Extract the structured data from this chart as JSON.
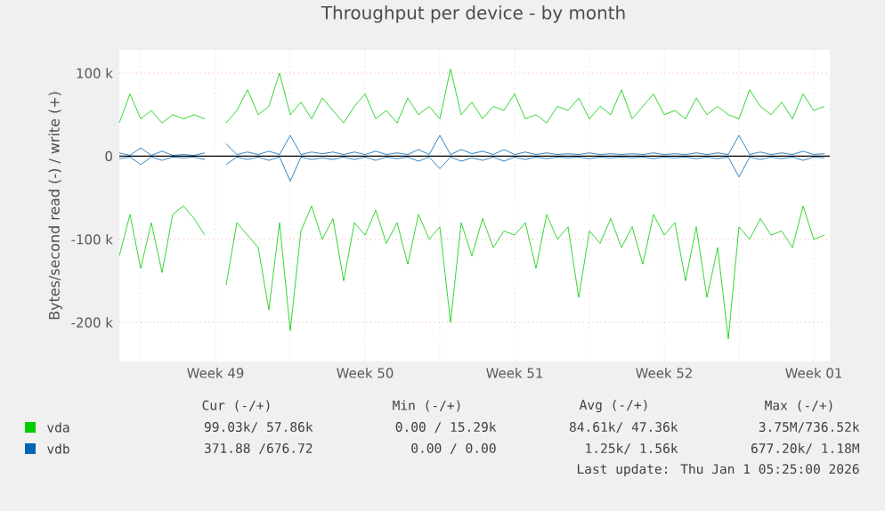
{
  "chart_data": {
    "type": "line",
    "title": "Throughput per device - by month",
    "ylabel": "Bytes/second read (-) / write (+)",
    "x": [
      "2025-11-30T00:00",
      "2025-11-30T12:00",
      "2025-12-01T00:00",
      "2025-12-01T12:00",
      "2025-12-02T00:00",
      "2025-12-02T12:00",
      "2025-12-03T00:00",
      "2025-12-03T12:00",
      "2025-12-04T00:00",
      "2025-12-04T12:00",
      "2025-12-05T00:00",
      "2025-12-05T12:00",
      "2025-12-06T00:00",
      "2025-12-06T12:00",
      "2025-12-07T00:00",
      "2025-12-07T12:00",
      "2025-12-08T00:00",
      "2025-12-08T12:00",
      "2025-12-09T00:00",
      "2025-12-09T12:00",
      "2025-12-10T00:00",
      "2025-12-10T12:00",
      "2025-12-11T00:00",
      "2025-12-11T12:00",
      "2025-12-12T00:00",
      "2025-12-12T12:00",
      "2025-12-13T00:00",
      "2025-12-13T12:00",
      "2025-12-14T00:00",
      "2025-12-14T12:00",
      "2025-12-15T00:00",
      "2025-12-15T12:00",
      "2025-12-16T00:00",
      "2025-12-16T12:00",
      "2025-12-17T00:00",
      "2025-12-17T12:00",
      "2025-12-18T00:00",
      "2025-12-18T12:00",
      "2025-12-19T00:00",
      "2025-12-19T12:00",
      "2025-12-20T00:00",
      "2025-12-20T12:00",
      "2025-12-21T00:00",
      "2025-12-21T12:00",
      "2025-12-22T00:00",
      "2025-12-22T12:00",
      "2025-12-23T00:00",
      "2025-12-23T12:00",
      "2025-12-24T00:00",
      "2025-12-24T12:00",
      "2025-12-25T00:00",
      "2025-12-25T12:00",
      "2025-12-26T00:00",
      "2025-12-26T12:00",
      "2025-12-27T00:00",
      "2025-12-27T12:00",
      "2025-12-28T00:00",
      "2025-12-28T12:00",
      "2025-12-29T00:00",
      "2025-12-29T12:00",
      "2025-12-30T00:00",
      "2025-12-30T12:00",
      "2025-12-31T00:00",
      "2025-12-31T12:00",
      "2026-01-01T00:00",
      "2026-01-01T12:00",
      "2026-01-02T00:00"
    ],
    "series": [
      {
        "name": "vda",
        "color": "#00cc00",
        "values": [
          40000,
          75000,
          45000,
          55000,
          40000,
          50000,
          45000,
          50000,
          45000,
          null,
          40000,
          55000,
          80000,
          50000,
          60000,
          100000,
          50000,
          65000,
          45000,
          70000,
          55000,
          40000,
          60000,
          75000,
          45000,
          55000,
          40000,
          70000,
          50000,
          60000,
          45000,
          105000,
          50000,
          65000,
          45000,
          60000,
          55000,
          75000,
          45000,
          50000,
          40000,
          60000,
          55000,
          70000,
          45000,
          60000,
          50000,
          80000,
          45000,
          60000,
          75000,
          50000,
          55000,
          45000,
          70000,
          50000,
          60000,
          50000,
          45000,
          80000,
          60000,
          50000,
          65000,
          45000,
          75000,
          55000,
          60000
        ]
      },
      {
        "color": "#00cc00",
        "values": [
          -120000,
          -70000,
          -135000,
          -80000,
          -140000,
          -70000,
          -60000,
          -75000,
          -95000,
          null,
          -155000,
          -80000,
          -95000,
          -110000,
          -185000,
          -80000,
          -210000,
          -90000,
          -60000,
          -100000,
          -75000,
          -150000,
          -80000,
          -95000,
          -65000,
          -105000,
          -80000,
          -130000,
          -70000,
          -100000,
          -85000,
          -200000,
          -80000,
          -120000,
          -75000,
          -110000,
          -90000,
          -95000,
          -80000,
          -135000,
          -70000,
          -100000,
          -85000,
          -170000,
          -90000,
          -105000,
          -75000,
          -110000,
          -85000,
          -130000,
          -70000,
          -95000,
          -80000,
          -150000,
          -85000,
          -170000,
          -110000,
          -220000,
          -85000,
          -100000,
          -75000,
          -95000,
          -90000,
          -110000,
          -60000,
          -100000,
          -95000
        ]
      },
      {
        "color": "#0066b3",
        "values": [
          -3000,
          -1000,
          -10000,
          -1000,
          -5000,
          -1000,
          -2000,
          -1000,
          -4000,
          null,
          -10000,
          -1000,
          -4000,
          -1000,
          -5000,
          -1000,
          -30000,
          -1000,
          -4000,
          -2000,
          -4000,
          -1000,
          -4000,
          -1000,
          -5000,
          -1000,
          -3000,
          -1000,
          -6000,
          -1000,
          -15000,
          -1000,
          -6000,
          -2000,
          -5000,
          -1000,
          -6000,
          -1000,
          -4000,
          -1000,
          -3000,
          -1000,
          -2000,
          -1000,
          -3000,
          -1000,
          -2000,
          -1000,
          -2000,
          -1000,
          -3000,
          -1000,
          -2000,
          -1000,
          -3000,
          -1000,
          -3000,
          -1000,
          -25000,
          -1000,
          -4000,
          -1000,
          -3000,
          -1000,
          -5000,
          -1000,
          -2000
        ]
      },
      {
        "name": "vdb",
        "color": "#0066b3",
        "values": [
          4000,
          1000,
          10000,
          1000,
          6000,
          1000,
          2000,
          1000,
          4000,
          null,
          15000,
          2000,
          5000,
          2000,
          6000,
          2000,
          25000,
          2000,
          5000,
          3000,
          5000,
          2000,
          5000,
          2000,
          6000,
          2000,
          4000,
          2000,
          8000,
          2000,
          25000,
          2000,
          8000,
          3000,
          6000,
          2000,
          8000,
          2000,
          5000,
          2000,
          4000,
          2000,
          3000,
          2000,
          4000,
          2000,
          3000,
          2000,
          3000,
          2000,
          4000,
          2000,
          3000,
          2000,
          4000,
          2000,
          4000,
          2000,
          25000,
          2000,
          5000,
          2000,
          4000,
          2000,
          6000,
          2000,
          3000
        ]
      }
    ],
    "xlim": [
      "2025-11-30T00:00",
      "2026-01-02T06:00"
    ],
    "xticks": [
      {
        "value": "2025-12-01T00:00",
        "label": null
      },
      {
        "value": "2025-12-04T12:00",
        "label": "Week 49"
      },
      {
        "value": "2025-12-08T00:00",
        "label": null
      },
      {
        "value": "2025-12-11T12:00",
        "label": "Week 50"
      },
      {
        "value": "2025-12-15T00:00",
        "label": null
      },
      {
        "value": "2025-12-18T12:00",
        "label": "Week 51"
      },
      {
        "value": "2025-12-22T00:00",
        "label": null
      },
      {
        "value": "2025-12-25T12:00",
        "label": "Week 52"
      },
      {
        "value": "2025-12-29T00:00",
        "label": null
      },
      {
        "value": "2026-01-01T12:00",
        "label": "Week 01"
      }
    ],
    "ylim": [
      -247000,
      128000
    ],
    "yticks": [
      {
        "value": -200000,
        "label": "-200 k"
      },
      {
        "value": -100000,
        "label": "-100 k"
      },
      0,
      {
        "value": 100000,
        "label": "100 k"
      }
    ],
    "ref_lines": [
      {
        "axis": "y",
        "value": 0,
        "color": "#000000"
      }
    ],
    "grid": true,
    "legend": "bottom",
    "annotations": [
      "Cur (-/+)",
      "Min (-/+)",
      "Avg (-/+)",
      "Max (-/+)",
      "99.03k/ 57.86k",
      "0.00 / 15.29k",
      "84.61k/ 47.36k",
      "3.75M/736.52k",
      "371.88 /676.72",
      "0.00 /  0.00",
      "1.25k/  1.56k",
      "677.20k/  1.18M",
      "Last update: Thu Jan  1 05:25:00 2026"
    ]
  }
}
